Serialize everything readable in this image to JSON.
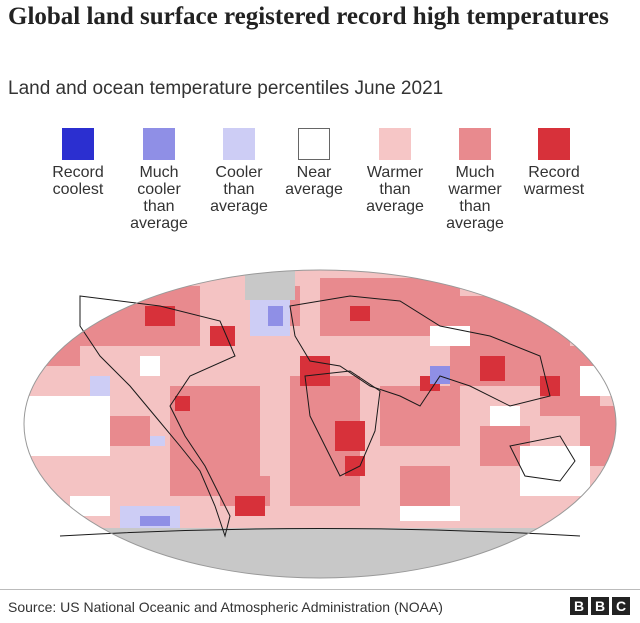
{
  "title": "Global land surface registered record high temperatures",
  "subtitle": "Land and ocean temperature percentiles June 2021",
  "legend": [
    {
      "label": "Record\ncoolest",
      "color": "#2b2fd0",
      "category": "record-coolest"
    },
    {
      "label": "Much\ncooler\nthan\naverage",
      "color": "#8f8fe6",
      "category": "much-cooler"
    },
    {
      "label": "Cooler\nthan\naverage",
      "color": "#cdcdf5",
      "category": "cooler"
    },
    {
      "label": "Near\naverage",
      "color": "#ffffff",
      "category": "near-average"
    },
    {
      "label": "Warmer\nthan\naverage",
      "color": "#f6c6c6",
      "category": "warmer"
    },
    {
      "label": "Much\nwarmer\nthan\naverage",
      "color": "#e88a8e",
      "category": "much-warmer"
    },
    {
      "label": "Record\nwarmest",
      "color": "#d7313a",
      "category": "record-warmest"
    }
  ],
  "map": {
    "title": "Land and ocean temperature percentiles June 2021",
    "base_color": "#f4c3c3",
    "land_ice_color": "#c8c8c8",
    "coastline_color": "#1a1a1a"
  },
  "footer": {
    "source": "Source: US National Oceanic and Atmospheric Administration (NOAA)",
    "logo_letters": [
      "B",
      "B",
      "C"
    ]
  }
}
